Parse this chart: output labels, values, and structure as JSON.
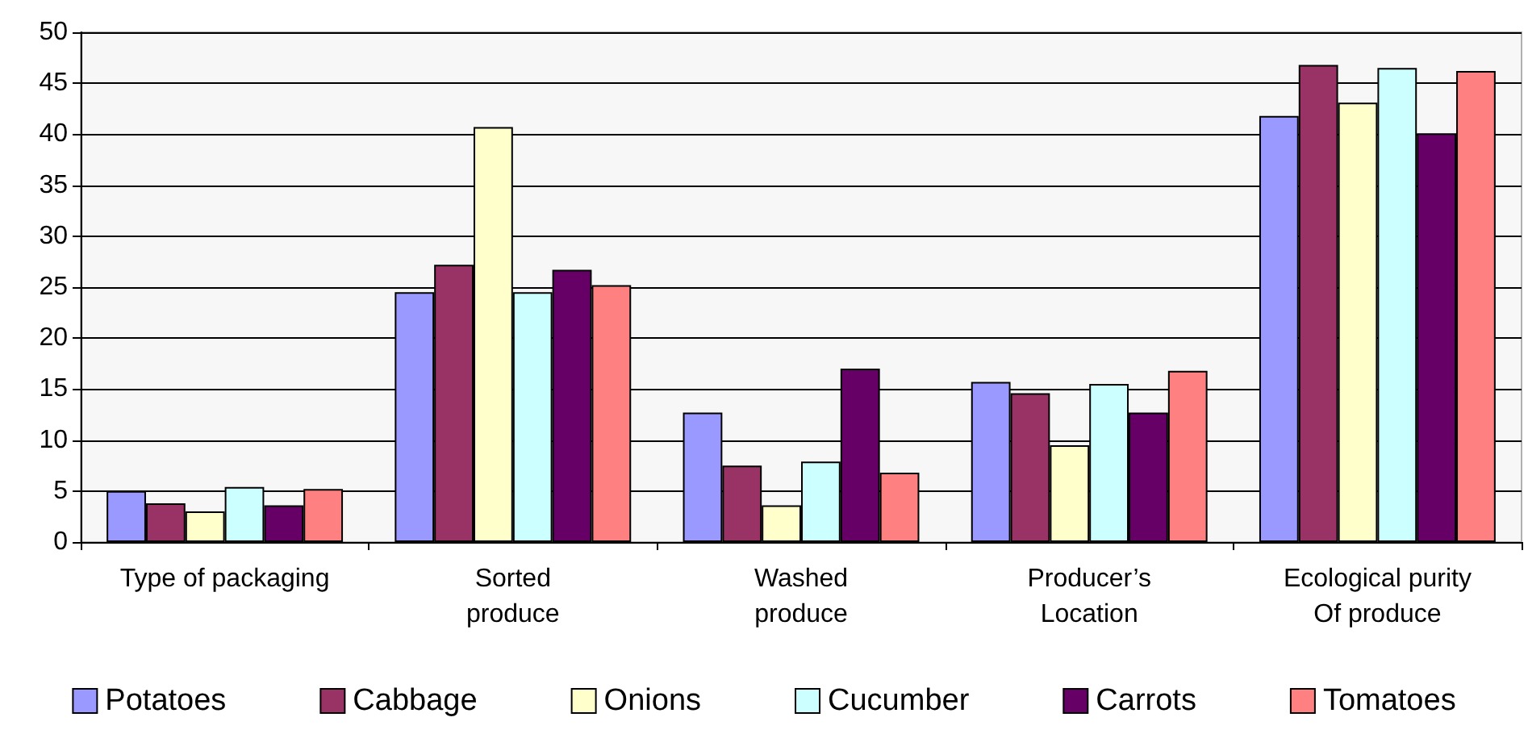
{
  "chart_data": {
    "type": "bar",
    "categories": [
      "Type of packaging",
      "Sorted\nproduce",
      "Washed\nproduce",
      "Producer’s\nLocation",
      "Ecological purity\nOf produce"
    ],
    "series": [
      {
        "name": "Potatoes",
        "color": "#9999ff",
        "values": [
          5.0,
          24.5,
          12.7,
          15.7,
          41.8
        ]
      },
      {
        "name": "Cabbage",
        "color": "#993366",
        "values": [
          3.8,
          27.2,
          7.5,
          14.6,
          46.8
        ]
      },
      {
        "name": "Onions",
        "color": "#ffffcc",
        "values": [
          3.0,
          40.7,
          3.6,
          9.5,
          43.1
        ]
      },
      {
        "name": "Cucumber",
        "color": "#ccffff",
        "values": [
          5.4,
          24.5,
          7.9,
          15.5,
          46.5
        ]
      },
      {
        "name": "Carrots",
        "color": "#660066",
        "values": [
          3.6,
          26.7,
          17.0,
          12.7,
          40.1
        ]
      },
      {
        "name": "Tomatoes",
        "color": "#ff8080",
        "values": [
          5.2,
          25.2,
          6.8,
          16.8,
          46.2
        ]
      }
    ],
    "ylim": [
      0,
      50
    ],
    "yticks": [
      0,
      5,
      10,
      15,
      20,
      25,
      30,
      35,
      40,
      45,
      50
    ],
    "grid": "y",
    "legend": "bottom"
  }
}
